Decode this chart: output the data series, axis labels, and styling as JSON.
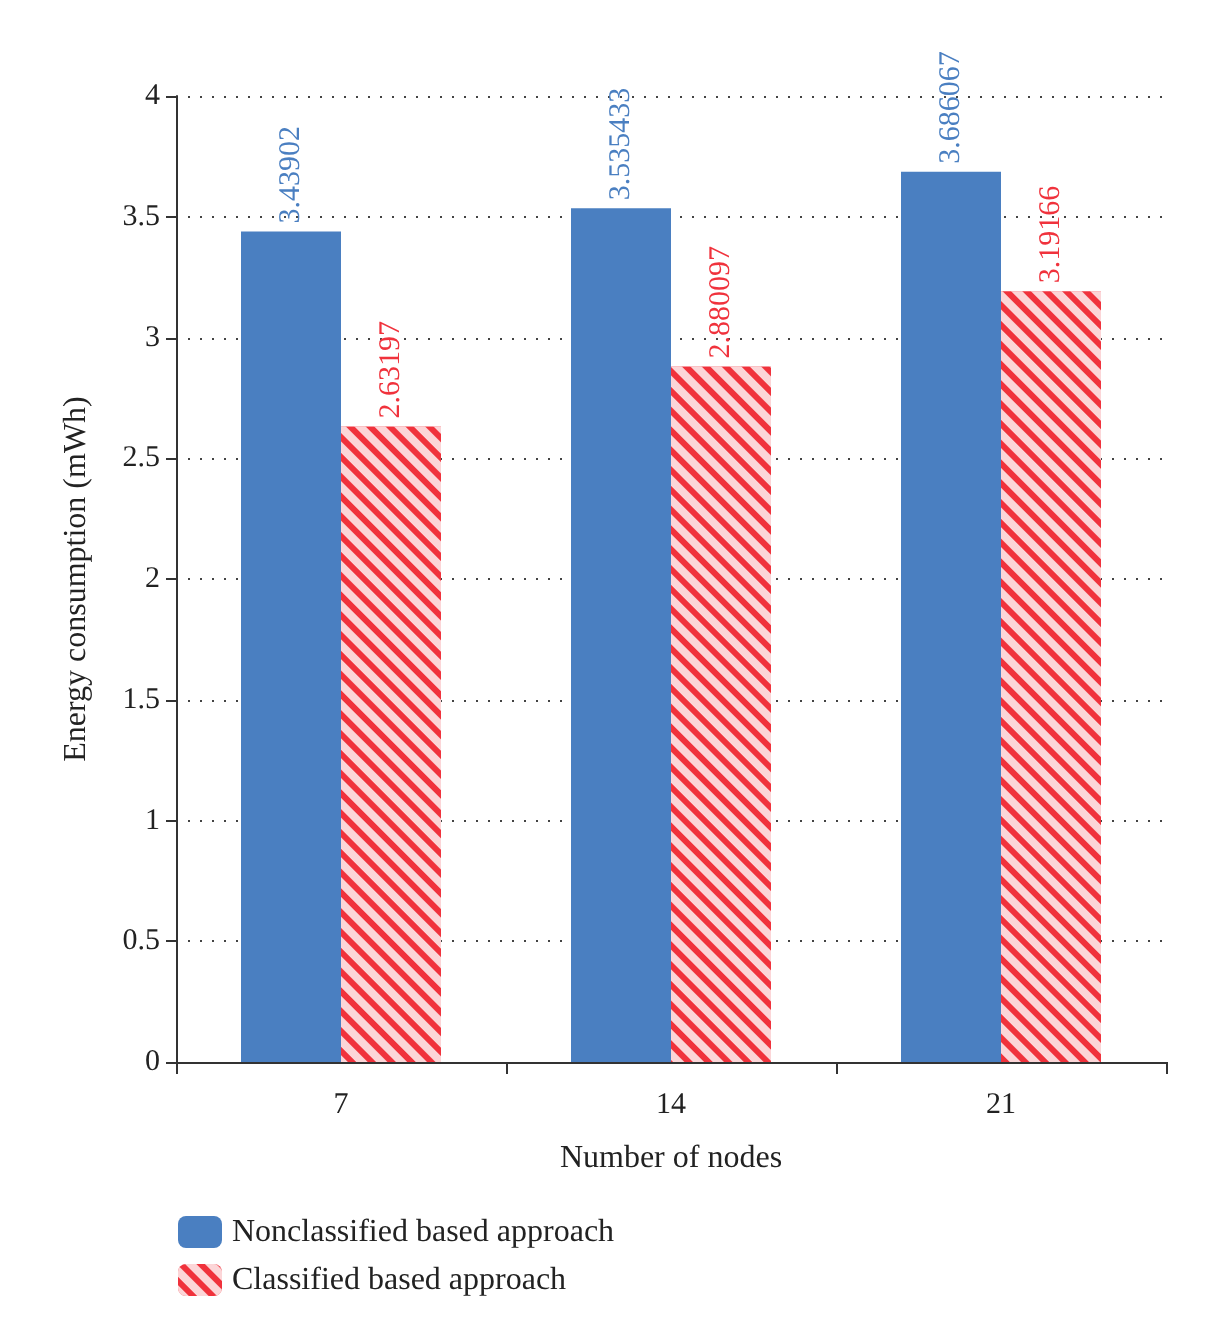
{
  "chart_data": {
    "type": "bar",
    "xlabel": "Number of nodes",
    "ylabel": "Energy consumption (mWh)",
    "categories": [
      "7",
      "14",
      "21"
    ],
    "series": [
      {
        "name": "Nonclassified based approach",
        "color": "#4a7fc1",
        "values": [
          3.43902,
          3.535433,
          3.686067
        ]
      },
      {
        "name": "Classified based approach",
        "color": "#f0323c",
        "values": [
          2.63197,
          2.880097,
          3.19166
        ]
      }
    ],
    "ylim": [
      0,
      4
    ],
    "yticks": [
      0,
      0.5,
      1,
      1.5,
      2,
      2.5,
      3,
      3.5,
      4
    ],
    "grid": "y",
    "legend": "bottom left",
    "data_labels": true
  }
}
